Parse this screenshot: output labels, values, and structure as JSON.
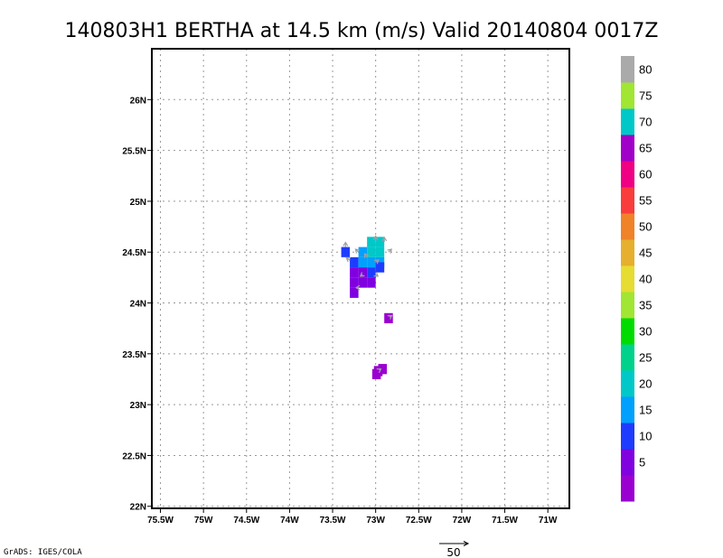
{
  "chart_data": {
    "type": "heatmap",
    "title": "140803H1 BERTHA at 14.5 km (m/s) Valid 20140804 0017Z",
    "xlim": [
      -75.6,
      -70.75
    ],
    "ylim": [
      21.98,
      26.5
    ],
    "x_ticks": [
      {
        "value": -75.5,
        "label": "75.5W"
      },
      {
        "value": -75.0,
        "label": "75W"
      },
      {
        "value": -74.5,
        "label": "74.5W"
      },
      {
        "value": -74.0,
        "label": "74W"
      },
      {
        "value": -73.5,
        "label": "73.5W"
      },
      {
        "value": -73.0,
        "label": "73W"
      },
      {
        "value": -72.5,
        "label": "72.5W"
      },
      {
        "value": -72.0,
        "label": "72W"
      },
      {
        "value": -71.5,
        "label": "71.5W"
      },
      {
        "value": -71.0,
        "label": "71W"
      }
    ],
    "y_ticks": [
      {
        "value": 22.0,
        "label": "22N"
      },
      {
        "value": 22.5,
        "label": "22.5N"
      },
      {
        "value": 23.0,
        "label": "23N"
      },
      {
        "value": 23.5,
        "label": "23.5N"
      },
      {
        "value": 24.0,
        "label": "24N"
      },
      {
        "value": 24.5,
        "label": "24.5N"
      },
      {
        "value": 25.0,
        "label": "25N"
      },
      {
        "value": 25.5,
        "label": "25.5N"
      },
      {
        "value": 26.0,
        "label": "26N"
      }
    ],
    "grid": true,
    "colorbar": {
      "levels": [
        {
          "color": "#9a00d0",
          "label": ""
        },
        {
          "color": "#8000e0",
          "label": "5"
        },
        {
          "color": "#1e3cff",
          "label": "10"
        },
        {
          "color": "#00a0ff",
          "label": "15"
        },
        {
          "color": "#00c8c8",
          "label": "20"
        },
        {
          "color": "#00d28c",
          "label": "25"
        },
        {
          "color": "#00dc00",
          "label": "30"
        },
        {
          "color": "#a0e632",
          "label": "35"
        },
        {
          "color": "#e6dc32",
          "label": "40"
        },
        {
          "color": "#e6af2d",
          "label": "45"
        },
        {
          "color": "#f08228",
          "label": "50"
        },
        {
          "color": "#fa3c3c",
          "label": "55"
        },
        {
          "color": "#f00082",
          "label": "60"
        },
        {
          "color": "#a000c8",
          "label": "65"
        },
        {
          "color": "#00c8c8",
          "label": "70"
        },
        {
          "color": "#a0e632",
          "label": "75"
        },
        {
          "color": "#aaaaaa",
          "label": "80"
        }
      ]
    },
    "cells": [
      {
        "lon": -73.05,
        "lat": 24.6,
        "level": 4
      },
      {
        "lon": -72.95,
        "lat": 24.6,
        "level": 4
      },
      {
        "lon": -73.15,
        "lat": 24.5,
        "level": 3
      },
      {
        "lon": -73.05,
        "lat": 24.5,
        "level": 4
      },
      {
        "lon": -72.95,
        "lat": 24.5,
        "level": 4
      },
      {
        "lon": -73.25,
        "lat": 24.4,
        "level": 2
      },
      {
        "lon": -73.15,
        "lat": 24.4,
        "level": 3
      },
      {
        "lon": -73.05,
        "lat": 24.4,
        "level": 3
      },
      {
        "lon": -72.95,
        "lat": 24.4,
        "level": 3
      },
      {
        "lon": -73.25,
        "lat": 24.3,
        "level": 1
      },
      {
        "lon": -73.15,
        "lat": 24.3,
        "level": 1
      },
      {
        "lon": -73.05,
        "lat": 24.3,
        "level": 2
      },
      {
        "lon": -72.95,
        "lat": 24.35,
        "level": 2
      },
      {
        "lon": -73.25,
        "lat": 24.2,
        "level": 1
      },
      {
        "lon": -73.15,
        "lat": 24.2,
        "level": 1
      },
      {
        "lon": -73.05,
        "lat": 24.2,
        "level": 1
      },
      {
        "lon": -73.25,
        "lat": 24.1,
        "level": 1
      },
      {
        "lon": -73.35,
        "lat": 24.5,
        "level": 2
      },
      {
        "lon": -72.85,
        "lat": 23.85,
        "level": 0
      },
      {
        "lon": -72.97,
        "lat": 23.33,
        "level": 0
      },
      {
        "lon": -72.92,
        "lat": 23.35,
        "level": 0
      },
      {
        "lon": -72.99,
        "lat": 23.3,
        "level": 0
      }
    ],
    "wind_vectors": [
      {
        "lon": -73.0,
        "lat": 24.6,
        "u": 0,
        "v": 10
      },
      {
        "lon": -72.9,
        "lat": 24.6,
        "u": 0,
        "v": 8
      },
      {
        "lon": -72.85,
        "lat": 24.5,
        "u": 5,
        "v": 5
      },
      {
        "lon": -73.35,
        "lat": 24.55,
        "u": 0,
        "v": 8
      },
      {
        "lon": -73.2,
        "lat": 24.5,
        "u": -5,
        "v": 5
      },
      {
        "lon": -73.1,
        "lat": 24.45,
        "u": -4,
        "v": 6
      },
      {
        "lon": -73.0,
        "lat": 24.4,
        "u": 5,
        "v": 4
      },
      {
        "lon": -73.3,
        "lat": 24.42,
        "u": -6,
        "v": 4
      },
      {
        "lon": -73.15,
        "lat": 24.28,
        "u": -4,
        "v": -3
      },
      {
        "lon": -73.0,
        "lat": 24.28,
        "u": 4,
        "v": -3
      },
      {
        "lon": -73.2,
        "lat": 24.15,
        "u": -4,
        "v": 0
      },
      {
        "lon": -72.84,
        "lat": 23.86,
        "u": 4,
        "v": 3
      },
      {
        "lon": -72.96,
        "lat": 23.34,
        "u": 3,
        "v": 2
      }
    ],
    "reference_vector": {
      "label": "50",
      "magnitude": 50
    }
  },
  "footer": {
    "credit": "GrADS: IGES/COLA"
  }
}
